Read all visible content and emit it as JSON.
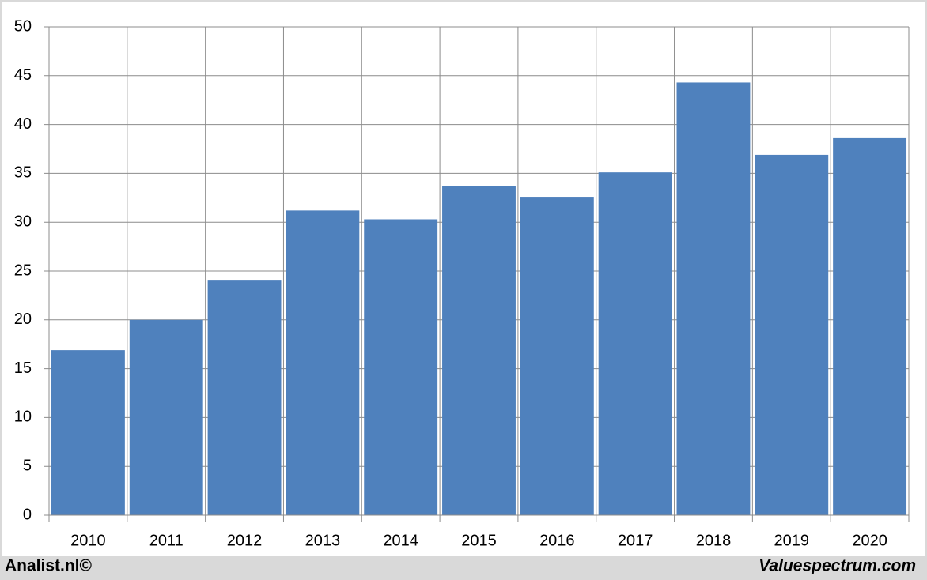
{
  "chart_data": {
    "type": "bar",
    "categories": [
      "2010",
      "2011",
      "2012",
      "2013",
      "2014",
      "2015",
      "2016",
      "2017",
      "2018",
      "2019",
      "2020"
    ],
    "values": [
      16.9,
      20.0,
      24.1,
      31.2,
      30.3,
      33.7,
      32.6,
      35.1,
      44.3,
      36.9,
      38.6
    ],
    "color": "#4f81bd",
    "ylim": [
      0,
      50
    ],
    "yticks": [
      0,
      5,
      10,
      15,
      20,
      25,
      30,
      35,
      40,
      45,
      50
    ],
    "grid": true,
    "annotations": [
      "Analist.nl©",
      "Valuespectrum.com"
    ]
  }
}
